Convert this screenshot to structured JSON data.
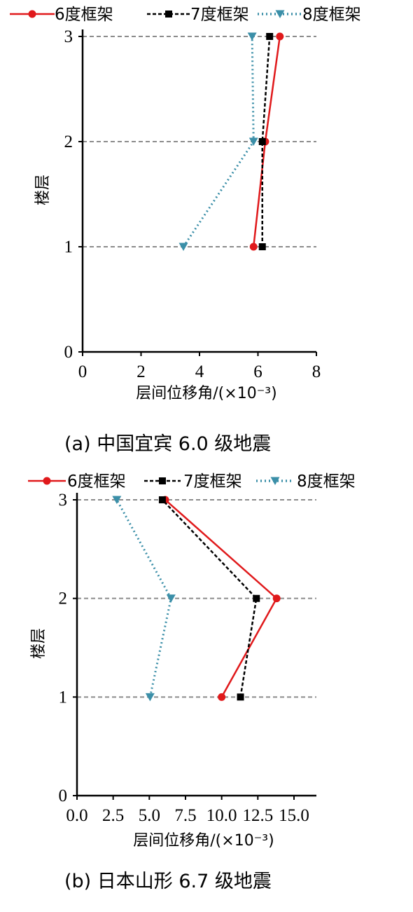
{
  "chart_data": [
    {
      "type": "line",
      "caption": "(a) 中国宜宾 6.0 级地震",
      "xlabel": "层间位移角/(×10⁻³)",
      "ylabel": "楼层",
      "xlim": [
        0,
        8
      ],
      "ylim": [
        0,
        3
      ],
      "xticks": [
        0,
        2,
        4,
        6,
        8
      ],
      "xtick_labels": [
        "0",
        "2",
        "4",
        "6",
        "8"
      ],
      "yticks": [
        0,
        1,
        2,
        3
      ],
      "ytick_labels": [
        "0",
        "1",
        "2",
        "3"
      ],
      "grid": "dashed horizontal lines at floors 1, 2, 3",
      "legend_position": "top",
      "series": [
        {
          "name": "6度框架",
          "color": "#e0191b",
          "style": "solid",
          "marker": "circle",
          "points": [
            {
              "x": 5.85,
              "y": 1
            },
            {
              "x": 6.25,
              "y": 2
            },
            {
              "x": 6.75,
              "y": 3
            }
          ]
        },
        {
          "name": "7度框架",
          "color": "#000000",
          "style": "dashed",
          "marker": "square",
          "points": [
            {
              "x": 6.15,
              "y": 1
            },
            {
              "x": 6.15,
              "y": 2
            },
            {
              "x": 6.4,
              "y": 3
            }
          ]
        },
        {
          "name": "8度框架",
          "color": "#3b8fa8",
          "style": "dotted",
          "marker": "triangle-down",
          "points": [
            {
              "x": 3.45,
              "y": 1
            },
            {
              "x": 5.85,
              "y": 2
            },
            {
              "x": 5.8,
              "y": 3
            }
          ]
        }
      ]
    },
    {
      "type": "line",
      "caption": "(b) 日本山形 6.7 级地震",
      "xlabel": "层间位移角/(×10⁻³)",
      "ylabel": "楼层",
      "xlim": [
        0,
        16.5
      ],
      "ylim": [
        0,
        3
      ],
      "xticks": [
        0,
        2.5,
        5,
        7.5,
        10,
        12.5,
        15
      ],
      "xtick_labels": [
        "0.0",
        "2.5",
        "5.0",
        "7.5",
        "10.0",
        "12.5",
        "15.0"
      ],
      "yticks": [
        0,
        1,
        2,
        3
      ],
      "ytick_labels": [
        "0",
        "1",
        "2",
        "3"
      ],
      "grid": "dashed horizontal lines at floors 1, 2, 3",
      "legend_position": "top",
      "series": [
        {
          "name": "6度框架",
          "color": "#e0191b",
          "style": "solid",
          "marker": "circle",
          "points": [
            {
              "x": 10.0,
              "y": 1
            },
            {
              "x": 13.8,
              "y": 2
            },
            {
              "x": 6.1,
              "y": 3
            }
          ]
        },
        {
          "name": "7度框架",
          "color": "#000000",
          "style": "dashed",
          "marker": "square",
          "points": [
            {
              "x": 11.3,
              "y": 1
            },
            {
              "x": 12.4,
              "y": 2
            },
            {
              "x": 5.9,
              "y": 3
            }
          ]
        },
        {
          "name": "8度框架",
          "color": "#3b8fa8",
          "style": "dotted",
          "marker": "triangle-down",
          "points": [
            {
              "x": 5.05,
              "y": 1
            },
            {
              "x": 6.5,
              "y": 2
            },
            {
              "x": 2.75,
              "y": 3
            }
          ]
        }
      ]
    }
  ]
}
